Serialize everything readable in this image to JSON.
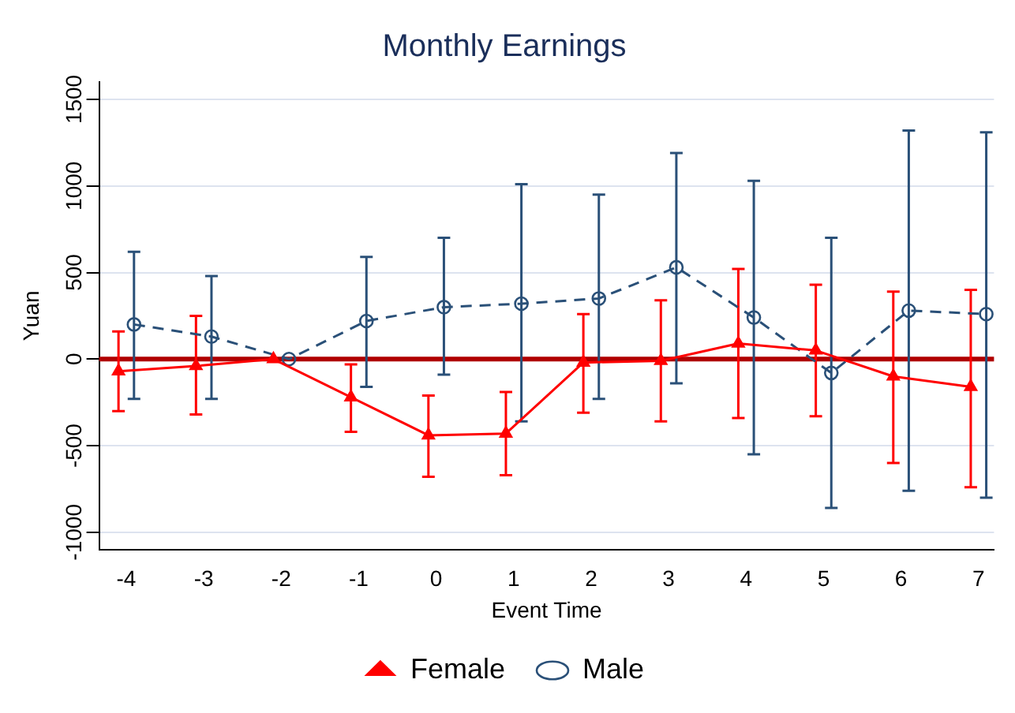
{
  "chart_data": {
    "type": "line",
    "title": "Monthly Earnings",
    "xlabel": "Event Time",
    "ylabel": "Yuan",
    "xlim": [
      -4.35,
      7.2
    ],
    "xticks": [
      -4,
      -3,
      -2,
      -1,
      0,
      1,
      2,
      3,
      4,
      5,
      6,
      7
    ],
    "ylim": [
      -1100,
      1600
    ],
    "yticks": [
      -1000,
      -500,
      0,
      500,
      1000,
      1500
    ],
    "series": [
      {
        "name": "Female",
        "color": "#ff0000",
        "marker": "triangle",
        "line_style": "solid",
        "x": [
          -4.1,
          -3.1,
          -2.1,
          -1.1,
          -0.1,
          0.9,
          1.9,
          2.9,
          3.9,
          4.9,
          5.9,
          6.9
        ],
        "values": [
          -70,
          -40,
          0,
          -220,
          -440,
          -430,
          -20,
          -10,
          90,
          50,
          -100,
          -160
        ],
        "errors": [
          [
            -300,
            160
          ],
          [
            -320,
            250
          ],
          null,
          [
            -420,
            -30
          ],
          [
            -680,
            -210
          ],
          [
            -670,
            -190
          ],
          [
            -310,
            260
          ],
          [
            -360,
            340
          ],
          [
            -340,
            520
          ],
          [
            -330,
            430
          ],
          [
            -600,
            390
          ],
          [
            -740,
            400
          ]
        ]
      },
      {
        "name": "Male",
        "color": "#2a5078",
        "marker": "circle",
        "line_style": "dashed",
        "x": [
          -3.9,
          -2.9,
          -1.9,
          -0.9,
          0.1,
          1.1,
          2.1,
          3.1,
          4.1,
          5.1,
          6.1,
          7.1
        ],
        "values": [
          200,
          130,
          0,
          220,
          300,
          320,
          350,
          530,
          240,
          -80,
          280,
          260
        ],
        "errors": [
          [
            -230,
            620
          ],
          [
            -230,
            480
          ],
          null,
          [
            -160,
            590
          ],
          [
            -90,
            700
          ],
          [
            -360,
            1010
          ],
          [
            -230,
            950
          ],
          [
            -140,
            1190
          ],
          [
            -550,
            1030
          ],
          [
            -860,
            700
          ],
          [
            -760,
            1320
          ],
          [
            -800,
            1310
          ]
        ]
      }
    ],
    "ref_lines": [
      {
        "axis": "y",
        "value": 0,
        "color": "#b00000"
      }
    ],
    "grid": "y",
    "legend": "bottom"
  }
}
